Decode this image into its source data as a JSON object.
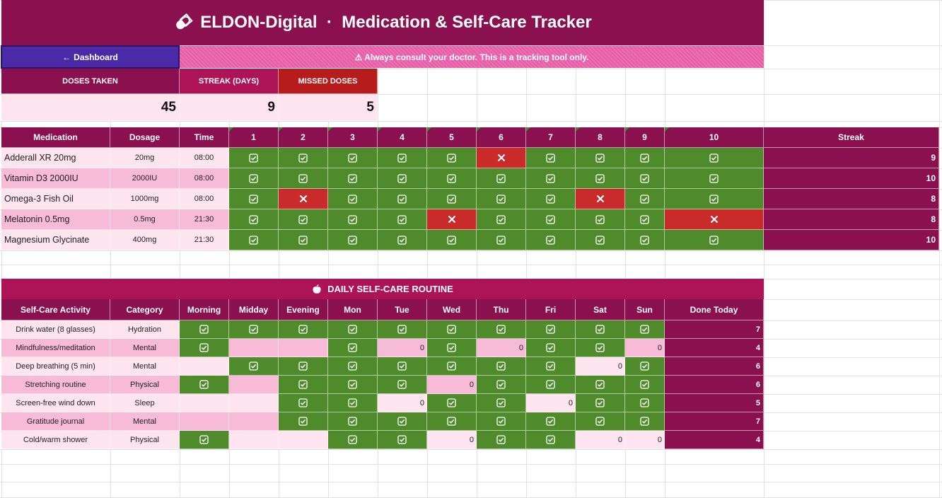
{
  "header": {
    "title": "ELDON-Digital  ·  Medication & Self-Care Tracker",
    "title_icon": "pill-icon"
  },
  "nav": {
    "back_label": "Dashboard",
    "back_icon": "arrow-left-icon"
  },
  "notice": "⚠ Always consult your doctor. This is a tracking tool only.",
  "kpis": [
    {
      "label": "DOSES TAKEN",
      "value": "45",
      "color": "#8b1050"
    },
    {
      "label": "STREAK (DAYS)",
      "value": "9",
      "color": "#ad1458"
    },
    {
      "label": "MISSED DOSES",
      "value": "5",
      "color": "#b71c1c"
    }
  ],
  "medications": {
    "columns": [
      "Medication",
      "Dosage",
      "Time",
      "1",
      "2",
      "3",
      "4",
      "5",
      "6",
      "7",
      "8",
      "9",
      "10",
      "Streak"
    ],
    "rows": [
      {
        "name": "Adderall XR 20mg",
        "dosage": "20mg",
        "time": "08:00",
        "days": [
          1,
          1,
          1,
          1,
          1,
          0,
          1,
          1,
          1,
          1
        ],
        "streak": "9"
      },
      {
        "name": "Vitamin D3 2000IU",
        "dosage": "2000IU",
        "time": "08:00",
        "days": [
          1,
          1,
          1,
          1,
          1,
          1,
          1,
          1,
          1,
          1
        ],
        "streak": "10"
      },
      {
        "name": "Omega-3 Fish Oil",
        "dosage": "1000mg",
        "time": "08:00",
        "days": [
          1,
          0,
          1,
          1,
          1,
          1,
          1,
          0,
          1,
          1
        ],
        "streak": "8"
      },
      {
        "name": "Melatonin 0.5mg",
        "dosage": "0.5mg",
        "time": "21:30",
        "days": [
          1,
          1,
          1,
          1,
          0,
          1,
          1,
          1,
          1,
          0
        ],
        "streak": "8"
      },
      {
        "name": "Magnesium Glycinate",
        "dosage": "400mg",
        "time": "21:30",
        "days": [
          1,
          1,
          1,
          1,
          1,
          1,
          1,
          1,
          1,
          1
        ],
        "streak": "10"
      }
    ]
  },
  "selfcare": {
    "title": "DAILY SELF-CARE ROUTINE",
    "title_icon": "apple-icon",
    "columns": [
      "Self-Care Activity",
      "Category",
      "Morning",
      "Midday",
      "Evening",
      "Mon",
      "Tue",
      "Wed",
      "Thu",
      "Fri",
      "Sat",
      "Sun",
      "Done Today"
    ],
    "rows": [
      {
        "activity": "Drink water (8 glasses)",
        "category": "Hydration",
        "times": [
          1,
          1,
          1
        ],
        "days": [
          1,
          1,
          1,
          1,
          1,
          1,
          1
        ],
        "done": "7"
      },
      {
        "activity": "Mindfulness/meditation",
        "category": "Mental",
        "times": [
          1,
          "",
          ""
        ],
        "days": [
          1,
          0,
          1,
          0,
          1,
          1,
          0
        ],
        "done": "4"
      },
      {
        "activity": "Deep breathing (5 min)",
        "category": "Mental",
        "times": [
          "",
          1,
          1
        ],
        "days": [
          1,
          1,
          1,
          1,
          1,
          0,
          1
        ],
        "done": "6"
      },
      {
        "activity": "Stretching routine",
        "category": "Physical",
        "times": [
          1,
          "",
          1
        ],
        "days": [
          1,
          1,
          0,
          1,
          1,
          1,
          1
        ],
        "done": "6"
      },
      {
        "activity": "Screen-free wind down",
        "category": "Sleep",
        "times": [
          "",
          "",
          1
        ],
        "days": [
          1,
          0,
          1,
          1,
          0,
          1,
          1
        ],
        "done": "5"
      },
      {
        "activity": "Gratitude journal",
        "category": "Mental",
        "times": [
          "",
          "",
          1
        ],
        "days": [
          1,
          1,
          1,
          1,
          1,
          1,
          1
        ],
        "done": "7"
      },
      {
        "activity": "Cold/warm shower",
        "category": "Physical",
        "times": [
          1,
          "",
          ""
        ],
        "days": [
          1,
          1,
          0,
          1,
          1,
          0,
          0
        ],
        "done": "4"
      }
    ]
  },
  "colors": {
    "taken": "#4f8a2b",
    "missed": "#c92a2a",
    "brand": "#8b1050",
    "accent": "#ad1458",
    "pink_light": "#fde4ef",
    "pink_mid": "#f7bad7",
    "back_button": "#4b2aa8"
  },
  "icons": {
    "checked": "checkbox-checked-icon",
    "missed": "x-mark-icon"
  }
}
